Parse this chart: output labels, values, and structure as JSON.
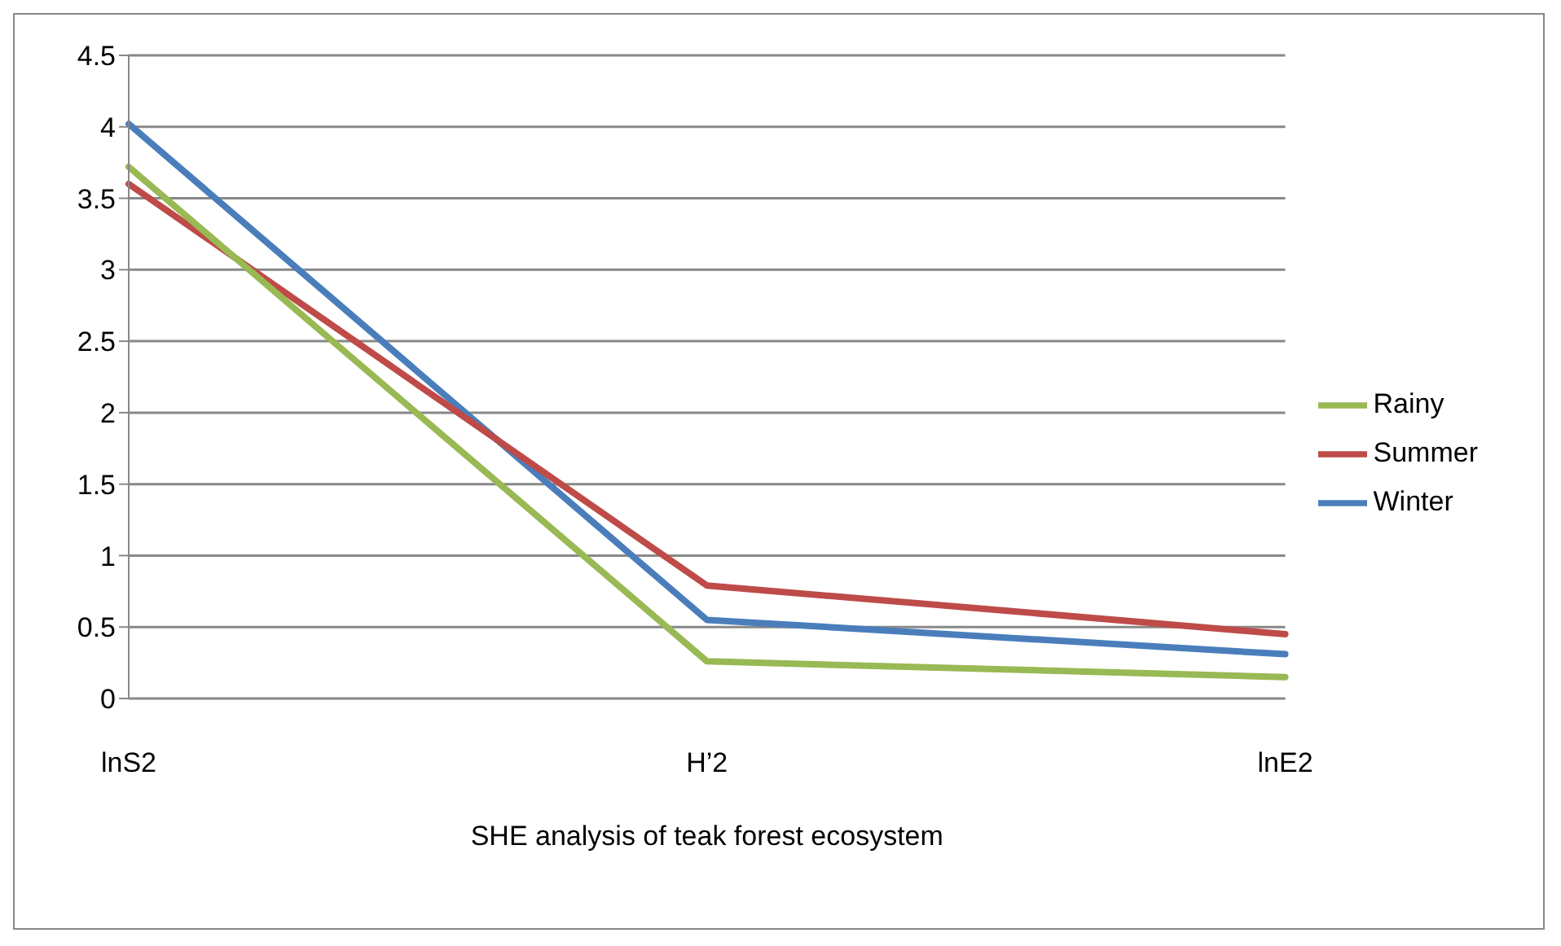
{
  "chart_data": {
    "type": "line",
    "xlabel": "SHE analysis of teak  forest ecosystem",
    "categories": [
      "lnS2",
      "H’2",
      "lnE2"
    ],
    "series": [
      {
        "name": "Winter",
        "color": "#4a7ebb",
        "values": [
          4.02,
          0.55,
          0.31
        ]
      },
      {
        "name": "Summer",
        "color": "#be4b48",
        "values": [
          3.6,
          0.79,
          0.45
        ]
      },
      {
        "name": "Rainy",
        "color": "#98b954",
        "values": [
          3.72,
          0.26,
          0.15
        ]
      }
    ],
    "ylim": [
      0,
      4.5
    ],
    "yticks": [
      0,
      0.5,
      1,
      1.5,
      2,
      2.5,
      3,
      3.5,
      4,
      4.5
    ],
    "grid": "y",
    "legend": "right",
    "marker": "none",
    "line_style": "solid"
  }
}
